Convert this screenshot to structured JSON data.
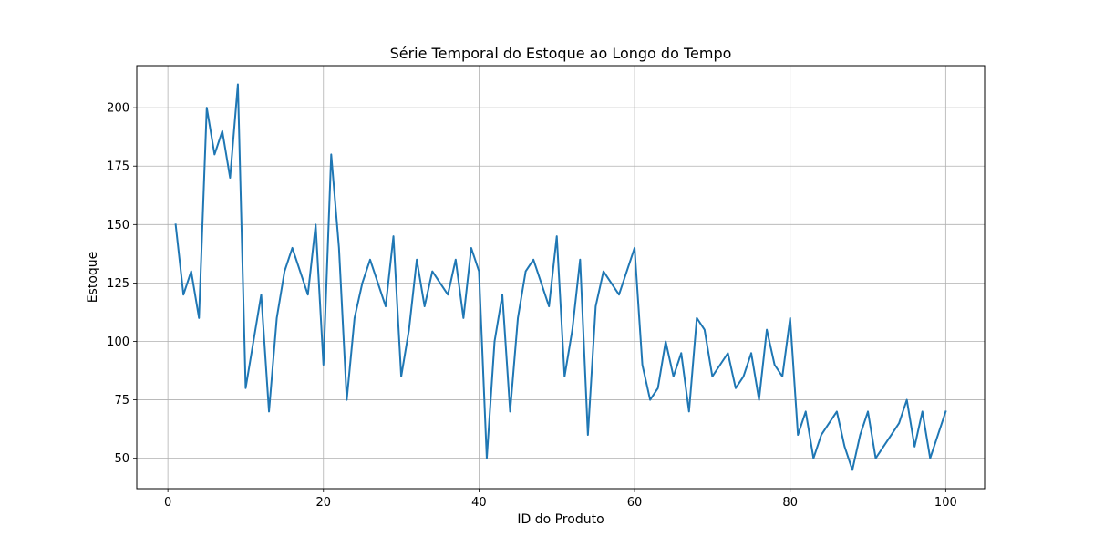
{
  "chart_data": {
    "type": "line",
    "title": "Série Temporal do Estoque ao Longo do Tempo",
    "xlabel": "ID do Produto",
    "ylabel": "Estoque",
    "xlim": [
      -4,
      105
    ],
    "ylim": [
      37,
      218
    ],
    "xticks": [
      0,
      20,
      40,
      60,
      80,
      100
    ],
    "yticks": [
      50,
      75,
      100,
      125,
      150,
      175,
      200
    ],
    "grid": true,
    "legend": "none",
    "series": [
      {
        "color": "#1f77b4",
        "x": [
          1,
          2,
          3,
          4,
          5,
          6,
          7,
          8,
          9,
          10,
          11,
          12,
          13,
          14,
          15,
          16,
          17,
          18,
          19,
          20,
          21,
          22,
          23,
          24,
          25,
          26,
          27,
          28,
          29,
          30,
          31,
          32,
          33,
          34,
          35,
          36,
          37,
          38,
          39,
          40,
          41,
          42,
          43,
          44,
          45,
          46,
          47,
          48,
          49,
          50,
          51,
          52,
          53,
          54,
          55,
          56,
          57,
          58,
          59,
          60,
          61,
          62,
          63,
          64,
          65,
          66,
          67,
          68,
          69,
          70,
          71,
          72,
          73,
          74,
          75,
          76,
          77,
          78,
          79,
          80,
          81,
          82,
          83,
          84,
          85,
          86,
          87,
          88,
          89,
          90,
          91,
          92,
          93,
          94,
          95,
          96,
          97,
          98,
          99,
          100
        ],
        "values": [
          150,
          120,
          130,
          110,
          200,
          180,
          190,
          170,
          210,
          80,
          100,
          120,
          70,
          110,
          130,
          140,
          130,
          120,
          150,
          90,
          180,
          140,
          75,
          110,
          125,
          135,
          125,
          115,
          145,
          85,
          105,
          135,
          115,
          130,
          125,
          120,
          135,
          110,
          140,
          130,
          50,
          100,
          120,
          70,
          110,
          130,
          135,
          125,
          115,
          145,
          85,
          105,
          135,
          60,
          115,
          130,
          125,
          120,
          130,
          140,
          90,
          75,
          80,
          100,
          85,
          95,
          70,
          110,
          105,
          85,
          90,
          95,
          80,
          85,
          95,
          75,
          105,
          90,
          85,
          110,
          60,
          70,
          50,
          60,
          65,
          70,
          55,
          45,
          60,
          70,
          50,
          55,
          60,
          65,
          75,
          55,
          70,
          50,
          60,
          70
        ]
      }
    ]
  }
}
